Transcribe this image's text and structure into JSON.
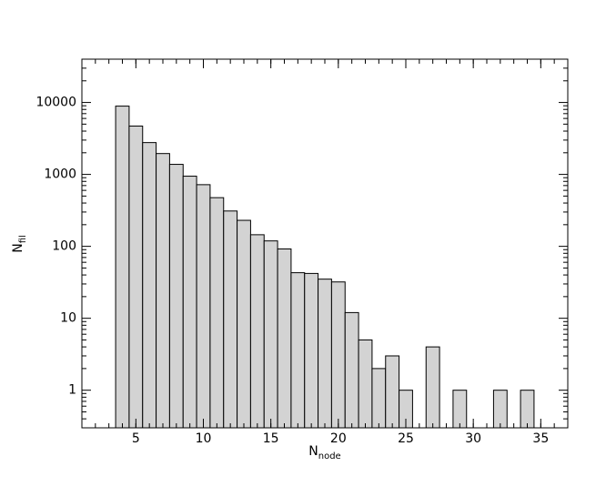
{
  "chart_data": {
    "type": "histogram",
    "xlabel": "N",
    "xlabel_sub": "node",
    "ylabel": "N",
    "ylabel_sub": "fil",
    "bins": [
      3.5,
      4.5,
      5.5,
      6.5,
      7.5,
      8.5,
      9.5,
      10.5,
      11.5,
      12.5,
      13.5,
      14.5,
      15.5,
      16.5,
      17.5,
      18.5,
      19.5,
      20.5,
      21.5,
      22.5,
      23.5,
      24.5,
      25.5,
      26.5,
      27.5,
      28.5,
      29.5,
      30.5,
      31.5,
      32.5,
      33.5,
      34.5
    ],
    "values": [
      8900,
      4700,
      2770,
      1950,
      1380,
      945,
      720,
      475,
      310,
      230,
      145,
      119,
      92,
      43,
      42,
      35,
      32,
      12,
      5,
      2,
      3,
      1,
      0,
      4,
      0,
      1,
      0,
      0,
      1,
      0,
      1
    ],
    "color": "#d3d3d3",
    "edgecolor": "#000000",
    "xlim": [
      1,
      37
    ],
    "xticks": [
      5,
      10,
      15,
      20,
      25,
      30,
      35
    ],
    "ylim": [
      0.3,
      40000
    ],
    "yticks": [
      1,
      10,
      100,
      1000,
      10000
    ],
    "yscale": "log"
  }
}
